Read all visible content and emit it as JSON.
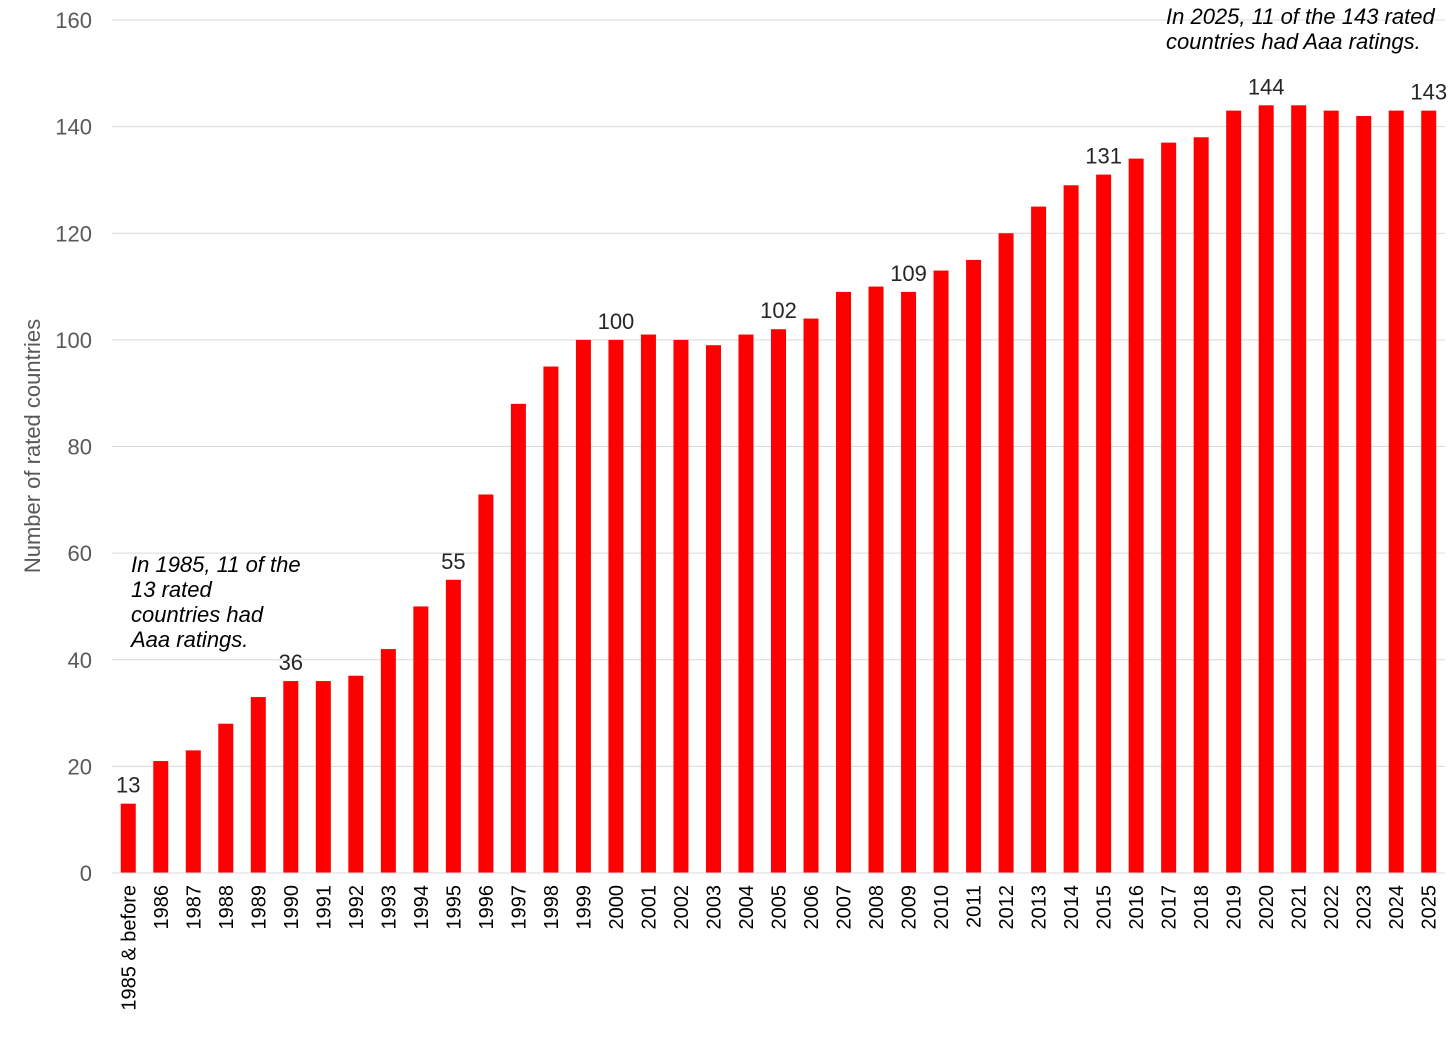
{
  "chart_data": {
    "type": "bar",
    "title": "",
    "xlabel": "",
    "ylabel": "Number of rated countries",
    "ylim": [
      0,
      160
    ],
    "yticks": [
      0,
      20,
      40,
      60,
      80,
      100,
      120,
      140,
      160
    ],
    "grid": true,
    "bar_color": "#FF0000",
    "categories": [
      "1985 & before",
      "1986",
      "1987",
      "1988",
      "1989",
      "1990",
      "1991",
      "1992",
      "1993",
      "1994",
      "1995",
      "1996",
      "1997",
      "1998",
      "1999",
      "2000",
      "2001",
      "2002",
      "2003",
      "2004",
      "2005",
      "2006",
      "2007",
      "2008",
      "2009",
      "2010",
      "2011",
      "2012",
      "2013",
      "2014",
      "2015",
      "2016",
      "2017",
      "2018",
      "2019",
      "2020",
      "2021",
      "2022",
      "2023",
      "2024",
      "2025"
    ],
    "values": [
      13,
      21,
      23,
      28,
      33,
      36,
      36,
      37,
      42,
      50,
      55,
      71,
      88,
      95,
      100,
      100,
      101,
      100,
      99,
      101,
      102,
      104,
      109,
      110,
      109,
      113,
      115,
      120,
      125,
      129,
      131,
      134,
      137,
      138,
      143,
      144,
      144,
      143,
      142,
      143,
      143
    ],
    "data_labels": [
      {
        "category": "1985 & before",
        "text": "13"
      },
      {
        "category": "1990",
        "text": "36"
      },
      {
        "category": "1995",
        "text": "55"
      },
      {
        "category": "2000",
        "text": "100"
      },
      {
        "category": "2005",
        "text": "102"
      },
      {
        "category": "2009",
        "text": "109"
      },
      {
        "category": "2015",
        "text": "131"
      },
      {
        "category": "2020",
        "text": "144"
      },
      {
        "category": "2025",
        "text": "143"
      }
    ],
    "annotations": [
      "In 1985, 11 of the 13 rated countries had Aaa ratings.",
      "In 2025, 11 of the 143 rated countries had Aaa ratings."
    ]
  }
}
